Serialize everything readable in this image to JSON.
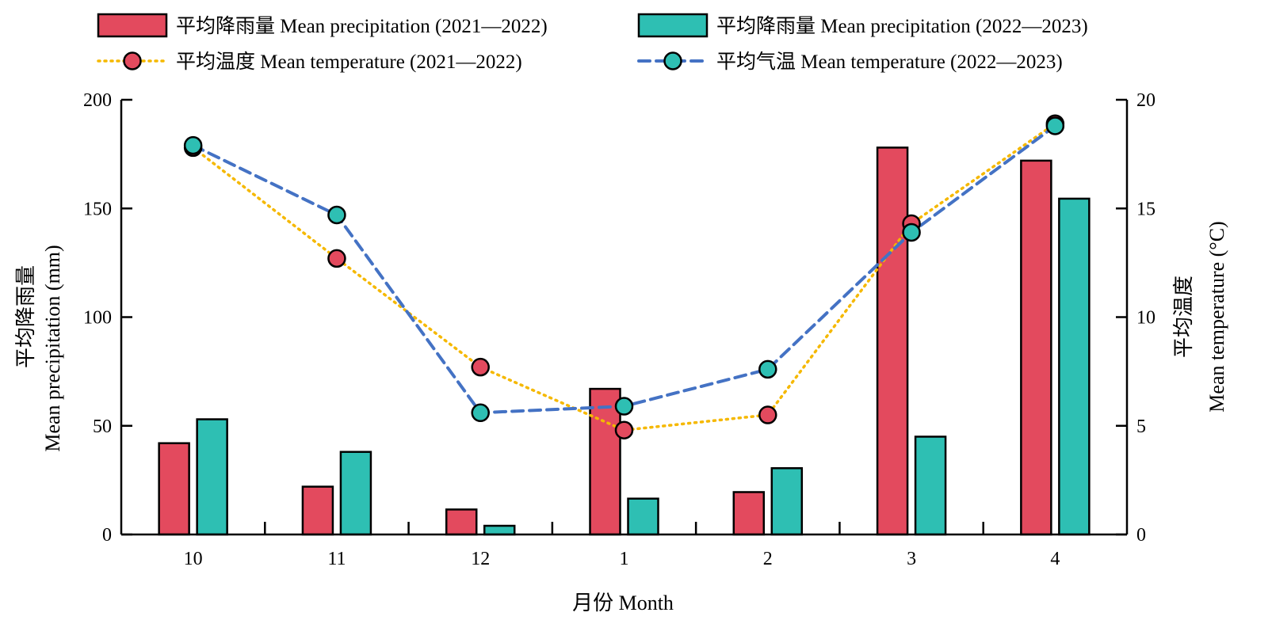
{
  "chart_data": {
    "type": "bar",
    "categories": [
      "10",
      "11",
      "12",
      "1",
      "2",
      "3",
      "4"
    ],
    "xlabel": "月份 Month",
    "ylabel_left": {
      "cn": "平均降雨量",
      "en": "Mean precipitation (mm)"
    },
    "ylabel_right": {
      "cn": "平均温度",
      "en": "Mean temperature (°C)"
    },
    "ylim_left": [
      0,
      200
    ],
    "ylim_right": [
      0,
      20
    ],
    "yticks_left": [
      "0",
      "50",
      "100",
      "150",
      "200"
    ],
    "yticks_right": [
      "0",
      "5",
      "10",
      "15",
      "20"
    ],
    "grid": false,
    "legend_position": "top",
    "series": [
      {
        "name": "平均降雨量 Mean precipitation (2021—2022)",
        "type": "bar",
        "axis": "left",
        "color": "#E34A5E",
        "values": [
          42,
          22,
          11.5,
          67,
          19.5,
          178,
          172
        ]
      },
      {
        "name": "平均降雨量 Mean precipitation (2022—2023)",
        "type": "bar",
        "axis": "left",
        "color": "#2EBFB3",
        "values": [
          53,
          38,
          4,
          16.5,
          30.5,
          45,
          154.5
        ]
      },
      {
        "name": "平均温度 Mean temperature (2021—2022)",
        "type": "line",
        "axis": "right",
        "style": "dotted",
        "line_color": "#F5B800",
        "marker_color": "#E34A5E",
        "values": [
          17.8,
          12.7,
          7.7,
          4.8,
          5.5,
          14.3,
          18.9
        ]
      },
      {
        "name": "平均气温 Mean temperature (2022—2023)",
        "type": "line",
        "axis": "right",
        "style": "dashed",
        "line_color": "#4472C4",
        "marker_color": "#2EBFB3",
        "values": [
          17.9,
          14.7,
          5.6,
          5.9,
          7.6,
          13.9,
          18.8
        ]
      }
    ]
  }
}
